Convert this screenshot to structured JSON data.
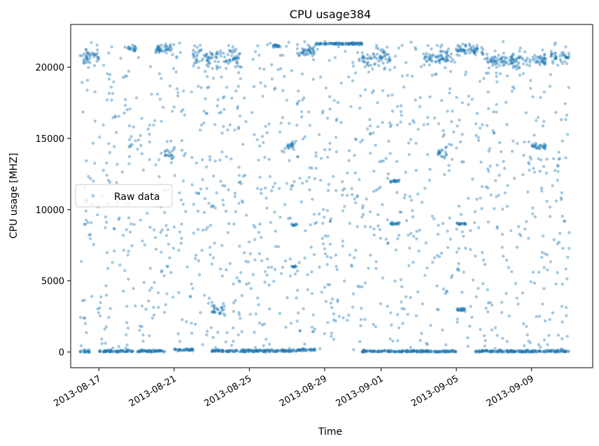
{
  "chart_data": {
    "type": "scatter",
    "title": "CPU usage384",
    "xlabel": "Time",
    "ylabel": "CPU usage [MHZ]",
    "xlim": [
      "2013-08-15T12:00",
      "2013-09-12T06:00"
    ],
    "ylim": [
      -1100,
      23000
    ],
    "x_ticks": [
      "2013-08-17",
      "2013-08-21",
      "2013-08-25",
      "2013-08-29",
      "2013-09-01",
      "2013-09-05",
      "2013-09-09"
    ],
    "y_ticks": [
      0,
      5000,
      10000,
      15000,
      20000
    ],
    "y_tick_labels": [
      "0",
      "5000",
      "10000",
      "15000",
      "20000"
    ],
    "legend": {
      "label": "Raw data",
      "location": "center-left"
    },
    "series_color": "#1f77b4",
    "series": [
      {
        "name": "Raw data",
        "x_range": [
          "2013-08-16T00:00",
          "2013-09-11T00:00"
        ],
        "notes": "Dense 5-minute samples; values cluster near 0 (idle) and ~20000-21800 (busy), with scattered points in between.",
        "clusters": [
          {
            "start": "2013-08-16T00:00",
            "end": "2013-08-16T12:00",
            "level": 0,
            "spread": 150
          },
          {
            "start": "2013-08-16T00:00",
            "end": "2013-08-17T00:00",
            "level": 20800,
            "spread": 700
          },
          {
            "start": "2013-08-17T00:00",
            "end": "2013-08-18T20:00",
            "level": 60,
            "spread": 80
          },
          {
            "start": "2013-08-18T12:00",
            "end": "2013-08-19T00:00",
            "level": 21300,
            "spread": 200
          },
          {
            "start": "2013-08-19T00:00",
            "end": "2013-08-20T12:00",
            "level": 60,
            "spread": 80
          },
          {
            "start": "2013-08-20T00:00",
            "end": "2013-08-21T00:00",
            "level": 21300,
            "spread": 300
          },
          {
            "start": "2013-08-20T12:00",
            "end": "2013-08-21T00:00",
            "level": 13900,
            "spread": 500
          },
          {
            "start": "2013-08-21T00:00",
            "end": "2013-08-22T00:00",
            "level": 150,
            "spread": 80
          },
          {
            "start": "2013-08-22T00:00",
            "end": "2013-08-24T12:00",
            "level": 20700,
            "spread": 700
          },
          {
            "start": "2013-08-23T00:00",
            "end": "2013-08-23T18:00",
            "level": 3000,
            "spread": 400
          },
          {
            "start": "2013-08-23T00:00",
            "end": "2013-08-27T12:00",
            "level": 80,
            "spread": 80
          },
          {
            "start": "2013-08-26T06:00",
            "end": "2013-08-26T18:00",
            "level": 21500,
            "spread": 150
          },
          {
            "start": "2013-08-27T00:00",
            "end": "2013-08-27T12:00",
            "level": 14500,
            "spread": 300
          },
          {
            "start": "2013-08-27T06:00",
            "end": "2013-08-27T12:00",
            "level": 8900,
            "spread": 100
          },
          {
            "start": "2013-08-27T06:00",
            "end": "2013-08-27T12:00",
            "level": 6000,
            "spread": 50
          },
          {
            "start": "2013-08-27T12:00",
            "end": "2013-08-28T12:00",
            "level": 21100,
            "spread": 350
          },
          {
            "start": "2013-08-27T12:00",
            "end": "2013-08-28T12:00",
            "level": 150,
            "spread": 100
          },
          {
            "start": "2013-08-28T12:00",
            "end": "2013-08-31T00:00",
            "level": 21650,
            "spread": 80
          },
          {
            "start": "2013-08-31T00:00",
            "end": "2013-09-01T12:00",
            "level": 20500,
            "spread": 700
          },
          {
            "start": "2013-08-31T00:00",
            "end": "2013-09-03T06:00",
            "level": 50,
            "spread": 80
          },
          {
            "start": "2013-09-01T12:00",
            "end": "2013-09-02T00:00",
            "level": 9000,
            "spread": 100
          },
          {
            "start": "2013-09-01T12:00",
            "end": "2013-09-02T00:00",
            "level": 12000,
            "spread": 100
          },
          {
            "start": "2013-09-03T06:00",
            "end": "2013-09-04T18:00",
            "level": 20700,
            "spread": 600
          },
          {
            "start": "2013-09-03T06:00",
            "end": "2013-09-05T00:00",
            "level": 50,
            "spread": 80
          },
          {
            "start": "2013-09-04T00:00",
            "end": "2013-09-04T12:00",
            "level": 14000,
            "spread": 400
          },
          {
            "start": "2013-09-05T00:00",
            "end": "2013-09-06T12:00",
            "level": 21200,
            "spread": 400
          },
          {
            "start": "2013-09-05T00:00",
            "end": "2013-09-05T12:00",
            "level": 9000,
            "spread": 100
          },
          {
            "start": "2013-09-05T00:00",
            "end": "2013-09-05T12:00",
            "level": 3000,
            "spread": 100
          },
          {
            "start": "2013-09-06T00:00",
            "end": "2013-09-11T00:00",
            "level": 50,
            "spread": 80
          },
          {
            "start": "2013-09-06T12:00",
            "end": "2013-09-09T18:00",
            "level": 20500,
            "spread": 500
          },
          {
            "start": "2013-09-09T00:00",
            "end": "2013-09-09T18:00",
            "level": 14400,
            "spread": 200
          },
          {
            "start": "2013-09-10T00:00",
            "end": "2013-09-11T00:00",
            "level": 20700,
            "spread": 500
          }
        ]
      }
    ]
  }
}
